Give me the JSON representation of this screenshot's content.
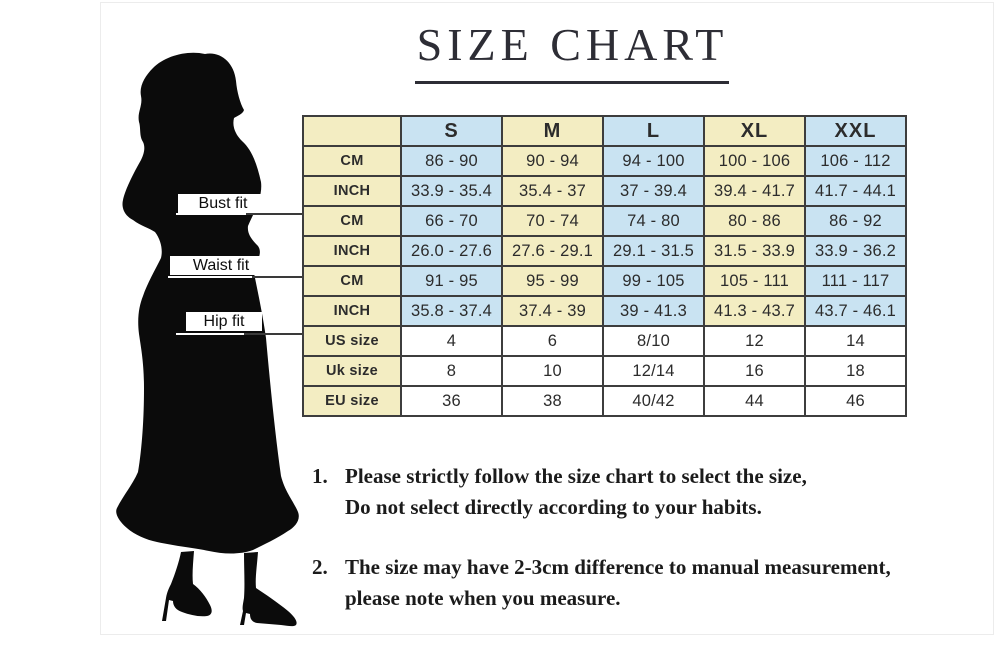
{
  "title": "SIZE CHART",
  "fit_labels": [
    {
      "text": "Bust fit"
    },
    {
      "text": "Waist fit"
    },
    {
      "text": "Hip fit"
    }
  ],
  "figure": {
    "description": "black silhouette of a woman in a fishtail dress with high heels",
    "color": "#0b0b0b"
  },
  "table": {
    "columns": [
      "S",
      "M",
      "L",
      "XL",
      "XXL"
    ],
    "rows": [
      {
        "label": "CM",
        "group": "bust",
        "style": "alt",
        "cells": [
          "86 - 90",
          "90 - 94",
          "94 - 100",
          "100 - 106",
          "106 - 112"
        ]
      },
      {
        "label": "INCH",
        "group": "bust",
        "style": "alt",
        "cells": [
          "33.9 - 35.4",
          "35.4 - 37",
          "37 - 39.4",
          "39.4 - 41.7",
          "41.7 - 44.1"
        ]
      },
      {
        "label": "CM",
        "group": "waist",
        "style": "alt",
        "cells": [
          "66 - 70",
          "70 - 74",
          "74 - 80",
          "80 - 86",
          "86 - 92"
        ]
      },
      {
        "label": "INCH",
        "group": "waist",
        "style": "alt",
        "cells": [
          "26.0 - 27.6",
          "27.6 - 29.1",
          "29.1 - 31.5",
          "31.5 - 33.9",
          "33.9 - 36.2"
        ]
      },
      {
        "label": "CM",
        "group": "hip",
        "style": "alt",
        "cells": [
          "91 - 95",
          "95 - 99",
          "99 - 105",
          "105 - 111",
          "111 - 117"
        ]
      },
      {
        "label": "INCH",
        "group": "hip",
        "style": "alt",
        "cells": [
          "35.8 - 37.4",
          "37.4 - 39",
          "39 - 41.3",
          "41.3 - 43.7",
          "43.7 - 46.1"
        ]
      },
      {
        "label": "US size",
        "group": "sizes",
        "style": "plain",
        "cells": [
          "4",
          "6",
          "8/10",
          "12",
          "14"
        ]
      },
      {
        "label": "Uk size",
        "group": "sizes",
        "style": "plain",
        "cells": [
          "8",
          "10",
          "12/14",
          "16",
          "18"
        ]
      },
      {
        "label": "EU size",
        "group": "sizes",
        "style": "plain",
        "cells": [
          "36",
          "38",
          "40/42",
          "44",
          "46"
        ]
      }
    ],
    "colors": {
      "cream": "#f3edc2",
      "blue": "#c9e3f2",
      "white": "#ffffff",
      "border": "#3d3d3d"
    }
  },
  "notes": [
    {
      "number": "1.",
      "lines": [
        "Please strictly follow the size chart to select the size,",
        "Do not select directly according to your habits."
      ]
    },
    {
      "number": "2.",
      "lines": [
        "The size may have 2-3cm difference  to manual measurement,",
        "please note when you measure."
      ]
    }
  ]
}
